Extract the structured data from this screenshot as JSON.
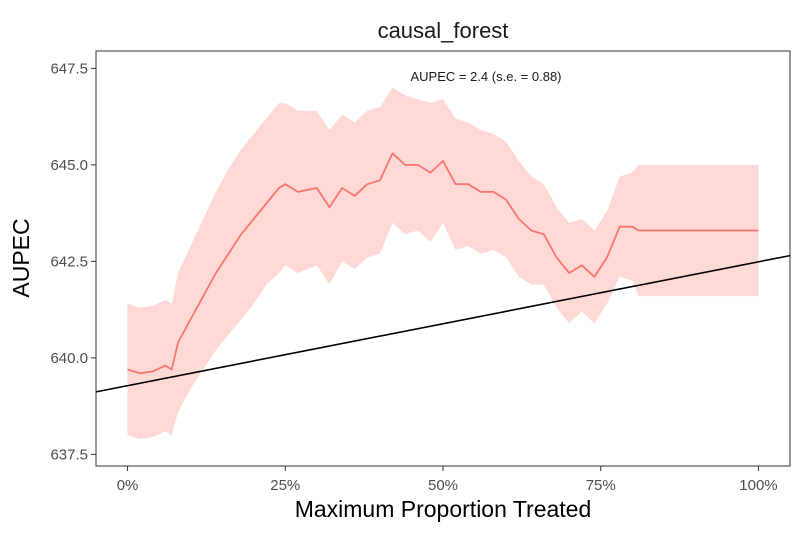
{
  "chart_data": {
    "type": "line",
    "title": "causal_forest",
    "xlabel": "Maximum Proportion Treated",
    "ylabel": "AUPEC",
    "annotation": "AUPEC = 2.4 (s.e. = 0.88)",
    "xlim": [
      -0.05,
      1.05
    ],
    "ylim": [
      637.2,
      647.95
    ],
    "x_ticks": [
      0,
      0.25,
      0.5,
      0.75,
      1.0
    ],
    "x_tick_labels": [
      "0%",
      "25%",
      "50%",
      "75%",
      "100%"
    ],
    "y_ticks": [
      637.5,
      640.0,
      642.5,
      645.0,
      647.5
    ],
    "y_tick_labels": [
      "637.5",
      "640.0",
      "642.5",
      "645.0",
      "647.5"
    ],
    "grid": false,
    "colors": {
      "curve": "#f8766d",
      "band": "#ffd9d5",
      "baseline": "#000000"
    },
    "series": [
      {
        "name": "AUPEC curve",
        "x": [
          0,
          0.02,
          0.04,
          0.06,
          0.07,
          0.08,
          0.1,
          0.12,
          0.14,
          0.16,
          0.18,
          0.2,
          0.22,
          0.24,
          0.25,
          0.27,
          0.3,
          0.32,
          0.34,
          0.36,
          0.38,
          0.4,
          0.42,
          0.44,
          0.46,
          0.48,
          0.5,
          0.52,
          0.54,
          0.56,
          0.58,
          0.6,
          0.62,
          0.64,
          0.66,
          0.68,
          0.7,
          0.72,
          0.74,
          0.76,
          0.78,
          0.8,
          0.81,
          0.9,
          1.0
        ],
        "y": [
          639.7,
          639.6,
          639.65,
          639.8,
          639.7,
          640.4,
          641.0,
          641.6,
          642.2,
          642.7,
          643.2,
          643.6,
          644.0,
          644.4,
          644.5,
          644.3,
          644.4,
          643.9,
          644.4,
          644.2,
          644.5,
          644.6,
          645.3,
          645.0,
          645.0,
          644.8,
          645.1,
          644.5,
          644.5,
          644.3,
          644.3,
          644.1,
          643.6,
          643.3,
          643.2,
          642.6,
          642.2,
          642.4,
          642.1,
          642.6,
          643.4,
          643.4,
          643.3,
          643.3,
          643.3
        ]
      },
      {
        "name": "confidence band upper",
        "x": [
          0,
          0.02,
          0.04,
          0.06,
          0.07,
          0.08,
          0.1,
          0.12,
          0.14,
          0.16,
          0.18,
          0.2,
          0.22,
          0.24,
          0.25,
          0.27,
          0.3,
          0.32,
          0.34,
          0.36,
          0.38,
          0.4,
          0.42,
          0.44,
          0.46,
          0.48,
          0.5,
          0.52,
          0.54,
          0.56,
          0.58,
          0.6,
          0.62,
          0.64,
          0.66,
          0.68,
          0.7,
          0.72,
          0.74,
          0.76,
          0.78,
          0.8,
          0.81,
          0.9,
          1.0
        ],
        "y": [
          641.4,
          641.3,
          641.35,
          641.5,
          641.4,
          642.2,
          642.9,
          643.6,
          644.3,
          644.9,
          645.4,
          645.8,
          646.2,
          646.6,
          646.6,
          646.4,
          646.4,
          645.9,
          646.3,
          646.1,
          646.4,
          646.5,
          647.0,
          646.8,
          646.7,
          646.6,
          646.7,
          646.2,
          646.1,
          645.9,
          645.8,
          645.6,
          645.1,
          644.7,
          644.5,
          643.9,
          643.5,
          643.6,
          643.3,
          643.8,
          644.7,
          644.8,
          645.0,
          645.0,
          645.0
        ]
      },
      {
        "name": "confidence band lower",
        "x": [
          0,
          0.02,
          0.04,
          0.06,
          0.07,
          0.08,
          0.1,
          0.12,
          0.14,
          0.16,
          0.18,
          0.2,
          0.22,
          0.24,
          0.25,
          0.27,
          0.3,
          0.32,
          0.34,
          0.36,
          0.38,
          0.4,
          0.42,
          0.44,
          0.46,
          0.48,
          0.5,
          0.52,
          0.54,
          0.56,
          0.58,
          0.6,
          0.62,
          0.64,
          0.66,
          0.68,
          0.7,
          0.72,
          0.74,
          0.76,
          0.78,
          0.8,
          0.81,
          0.9,
          1.0
        ],
        "y": [
          638.0,
          637.9,
          637.95,
          638.1,
          638.0,
          638.6,
          639.2,
          639.7,
          640.2,
          640.6,
          641.0,
          641.4,
          641.9,
          642.2,
          642.4,
          642.2,
          642.4,
          641.9,
          642.5,
          642.3,
          642.6,
          642.7,
          643.5,
          643.2,
          643.3,
          643.0,
          643.5,
          642.8,
          642.9,
          642.7,
          642.8,
          642.6,
          642.1,
          641.9,
          641.9,
          641.3,
          640.9,
          641.2,
          640.9,
          641.4,
          642.1,
          642.0,
          641.6,
          641.6,
          641.6
        ]
      },
      {
        "name": "random baseline",
        "x": [
          -0.05,
          1.05
        ],
        "y": [
          639.12,
          642.65
        ]
      }
    ]
  }
}
